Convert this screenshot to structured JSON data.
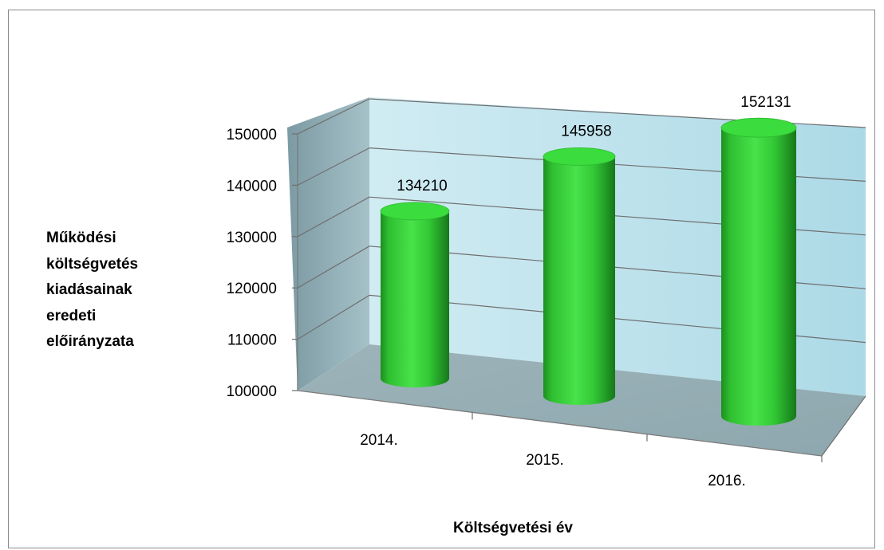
{
  "chart_data": {
    "type": "bar",
    "style": "3d-cylinder",
    "categories": [
      "2014.",
      "2015.",
      "2016."
    ],
    "values": [
      134210,
      145958,
      152131
    ],
    "data_labels": [
      "134210",
      "145958",
      "152131"
    ],
    "y_ticks": [
      "100000",
      "110000",
      "120000",
      "130000",
      "140000",
      "150000"
    ],
    "ylim": [
      100000,
      150000
    ],
    "xlabel": "Költségvetési év",
    "ylabel": "Működési költségvetés kiadásainak eredeti előirányzata",
    "grid": true,
    "legend": "none",
    "colors": {
      "bar": "#3fd640",
      "bar_dark": "#1c8f1e",
      "back_wall": "#bfe2ec",
      "side_wall": "#7f9da6",
      "floor": "#95adb4",
      "grid": "#6f6f6f"
    }
  }
}
